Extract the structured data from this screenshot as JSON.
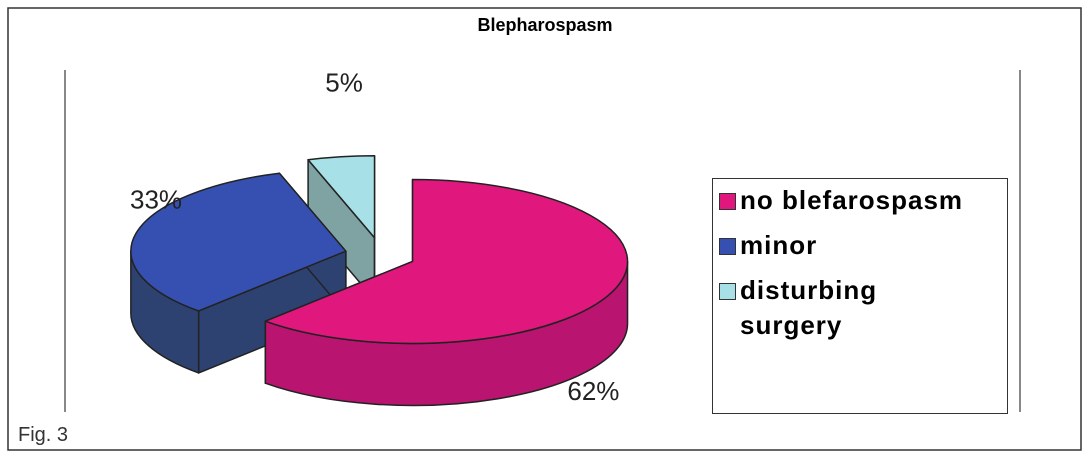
{
  "chart_data": {
    "type": "pie3d",
    "title": "Blepharospasm",
    "categories": [
      "no blefarospasm",
      "minor",
      "disturbing surgery"
    ],
    "values": [
      62,
      33,
      5
    ],
    "value_labels": [
      "62%",
      "33%",
      "5%"
    ],
    "colors": [
      "#e0177d",
      "#3550b0",
      "#a8e0e8"
    ],
    "side_colors": [
      "#b81470",
      "#2e4272",
      "#7fa3a3"
    ],
    "legend": "right"
  },
  "caption": "Fig. 3"
}
